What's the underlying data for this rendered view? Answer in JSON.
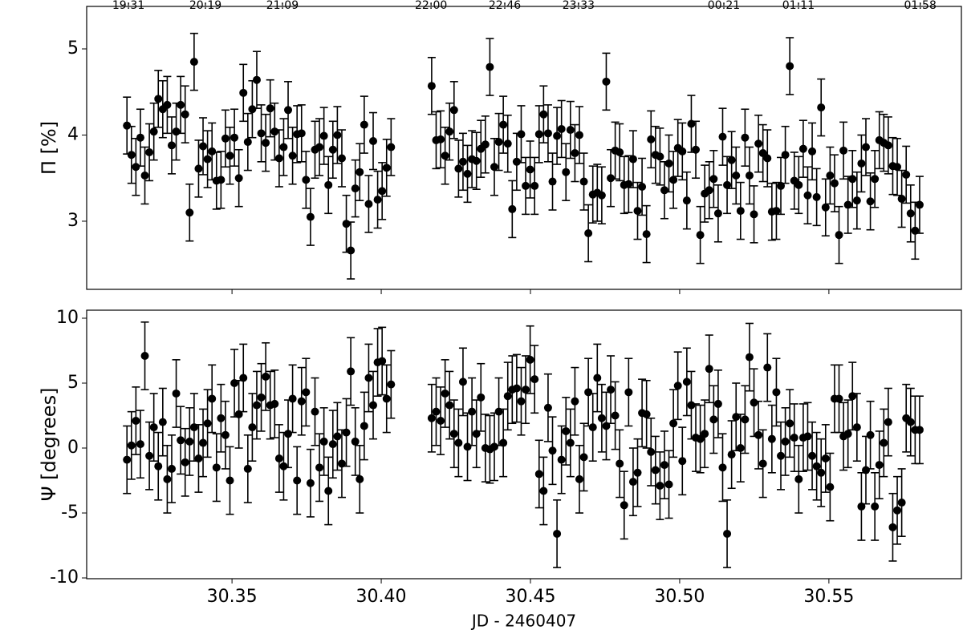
{
  "chart_data": {
    "type": "scatter",
    "xlabel": "JD - 2460407",
    "xlim": [
      30.3013,
      30.5944
    ],
    "xticks": [
      30.35,
      {
        "value": 30.4,
        "label": "30.40"
      },
      30.45,
      {
        "value": 30.5,
        "label": "30.50"
      },
      30.55
    ],
    "x2ticks": [
      {
        "value": 30.3153,
        "label": "19:31"
      },
      {
        "value": 30.3411,
        "label": "20:19"
      },
      {
        "value": 30.3669,
        "label": "21:09"
      },
      {
        "value": 30.4167,
        "label": "22:00"
      },
      {
        "value": 30.4414,
        "label": "22:46"
      },
      {
        "value": 30.4661,
        "label": "23:33"
      },
      {
        "value": 30.5148,
        "label": "00:21"
      },
      {
        "value": 30.5398,
        "label": "01:11"
      },
      {
        "value": 30.5806,
        "label": "01:58"
      }
    ],
    "color": "#000000",
    "x": [
      30.3148,
      30.3163,
      30.3178,
      30.3193,
      30.3208,
      30.3223,
      30.3238,
      30.3253,
      30.3268,
      30.3283,
      30.3298,
      30.3313,
      30.3328,
      30.3343,
      30.3358,
      30.3373,
      30.3388,
      30.3403,
      30.3418,
      30.3433,
      30.3448,
      30.3463,
      30.3478,
      30.3493,
      30.3508,
      30.3523,
      30.3538,
      30.3553,
      30.3568,
      30.3583,
      30.3598,
      30.3613,
      30.3628,
      30.3643,
      30.3658,
      30.3673,
      30.3688,
      30.3703,
      30.3718,
      30.3733,
      30.3748,
      30.3763,
      30.3778,
      30.3793,
      30.3808,
      30.3823,
      30.3838,
      30.3853,
      30.3868,
      30.3883,
      30.3898,
      30.3913,
      30.3928,
      30.3943,
      30.3958,
      30.3973,
      30.3988,
      30.4003,
      30.4018,
      30.4033,
      30.4169,
      30.4184,
      30.4199,
      30.4214,
      30.4229,
      30.4244,
      30.4259,
      30.4274,
      30.4289,
      30.4304,
      30.4319,
      30.4334,
      30.4349,
      30.4364,
      30.4379,
      30.4394,
      30.4409,
      30.4424,
      30.4439,
      30.4454,
      30.4469,
      30.4484,
      30.4499,
      30.4514,
      30.4529,
      30.4544,
      30.4559,
      30.4574,
      30.4589,
      30.4604,
      30.4619,
      30.4634,
      30.4649,
      30.4664,
      30.4679,
      30.4694,
      30.4709,
      30.4724,
      30.4739,
      30.4754,
      30.4769,
      30.4784,
      30.4799,
      30.4814,
      30.4829,
      30.4844,
      30.4859,
      30.4874,
      30.4889,
      30.4904,
      30.4919,
      30.4934,
      30.4949,
      30.4964,
      30.4979,
      30.4994,
      30.5009,
      30.5024,
      30.5039,
      30.5054,
      30.5069,
      30.5084,
      30.5099,
      30.5114,
      30.5129,
      30.5144,
      30.5159,
      30.5174,
      30.5189,
      30.5204,
      30.5219,
      30.5234,
      30.5249,
      30.5264,
      30.5279,
      30.5294,
      30.5309,
      30.5324,
      30.5339,
      30.5354,
      30.5369,
      30.5384,
      30.5399,
      30.5414,
      30.5429,
      30.5444,
      30.5459,
      30.5474,
      30.5489,
      30.5504,
      30.5519,
      30.5534,
      30.5549,
      30.5564,
      30.5579,
      30.5594,
      30.5609,
      30.5624,
      30.5639,
      30.5654,
      30.5669,
      30.5684,
      30.5699,
      30.5714,
      30.5729,
      30.5744,
      30.5759,
      30.5774,
      30.5789,
      30.5804
    ],
    "panels": [
      {
        "ylabel": "Π [%]",
        "ylim": [
          2.209,
          5.493
        ],
        "yticks": [
          3,
          4,
          5
        ],
        "error": 0.33,
        "values": [
          4.11,
          3.77,
          3.63,
          3.97,
          3.53,
          3.8,
          4.04,
          4.42,
          4.3,
          4.35,
          3.88,
          4.04,
          4.35,
          4.24,
          3.1,
          4.85,
          3.61,
          3.87,
          3.72,
          3.81,
          3.47,
          3.48,
          3.96,
          3.76,
          3.97,
          3.5,
          4.49,
          3.92,
          4.3,
          4.64,
          4.02,
          3.91,
          4.31,
          4.04,
          3.73,
          3.86,
          4.29,
          3.76,
          4.01,
          4.02,
          3.48,
          3.05,
          3.83,
          3.86,
          3.99,
          3.42,
          3.83,
          4.0,
          3.73,
          2.97,
          2.66,
          3.38,
          3.57,
          4.12,
          3.2,
          3.93,
          3.25,
          3.35,
          3.62,
          3.86,
          4.57,
          3.94,
          3.95,
          3.76,
          4.04,
          4.29,
          3.61,
          3.69,
          3.55,
          3.72,
          3.7,
          3.84,
          3.89,
          4.79,
          3.63,
          3.92,
          4.12,
          3.9,
          3.14,
          3.69,
          4.01,
          3.41,
          3.6,
          3.41,
          4.01,
          4.24,
          4.02,
          3.46,
          3.99,
          4.07,
          3.57,
          4.06,
          3.79,
          4.0,
          3.46,
          2.86,
          3.31,
          3.33,
          3.3,
          4.62,
          3.5,
          3.82,
          3.8,
          3.42,
          3.43,
          3.72,
          3.12,
          3.4,
          2.85,
          3.95,
          3.77,
          3.75,
          3.36,
          3.67,
          3.48,
          3.85,
          3.81,
          3.24,
          4.13,
          3.83,
          2.84,
          3.32,
          3.36,
          3.49,
          3.09,
          3.98,
          3.42,
          3.71,
          3.53,
          3.12,
          3.97,
          3.53,
          3.08,
          3.9,
          3.79,
          3.73,
          3.11,
          3.12,
          3.41,
          3.77,
          4.8,
          3.47,
          3.42,
          3.84,
          3.3,
          3.81,
          3.28,
          4.32,
          3.16,
          3.53,
          3.44,
          2.84,
          3.82,
          3.19,
          3.49,
          3.24,
          3.67,
          3.86,
          3.23,
          3.49,
          3.94,
          3.91,
          3.88,
          3.64,
          3.63,
          3.26,
          3.54,
          3.09,
          2.89,
          3.19
        ]
      },
      {
        "ylabel": "Ψ [degrees]",
        "ylim": [
          -10.06,
          10.617
        ],
        "yticks": [
          -10,
          -5,
          0,
          5,
          10
        ],
        "error": 2.6,
        "values": [
          -0.9,
          0.2,
          2.1,
          0.3,
          7.1,
          -0.6,
          1.6,
          -1.4,
          2.0,
          -2.4,
          -1.6,
          4.2,
          0.6,
          -1.1,
          0.5,
          1.6,
          -0.8,
          0.4,
          1.9,
          3.8,
          -1.5,
          2.3,
          1.0,
          -2.5,
          5.0,
          2.6,
          5.4,
          -1.6,
          1.6,
          3.3,
          3.9,
          5.5,
          3.3,
          3.4,
          -0.8,
          -1.4,
          1.1,
          3.8,
          -2.5,
          3.6,
          4.3,
          -2.7,
          2.8,
          -1.5,
          0.5,
          -3.3,
          0.3,
          0.9,
          -1.2,
          1.2,
          5.9,
          0.5,
          -2.4,
          1.7,
          5.4,
          3.3,
          6.6,
          6.7,
          3.8,
          4.9,
          2.3,
          2.8,
          2.1,
          4.2,
          3.3,
          1.1,
          0.4,
          5.1,
          0.1,
          2.8,
          1.1,
          3.9,
          0.0,
          -0.1,
          0.1,
          2.8,
          0.4,
          4.0,
          4.5,
          4.6,
          3.6,
          4.5,
          6.8,
          5.3,
          -2.0,
          -3.3,
          3.1,
          -0.2,
          -6.6,
          -0.9,
          1.3,
          0.4,
          3.6,
          -2.4,
          -0.7,
          4.3,
          1.6,
          5.4,
          2.3,
          1.7,
          4.5,
          2.5,
          -1.2,
          -4.4,
          4.3,
          -2.6,
          -1.9,
          2.7,
          2.6,
          -0.3,
          -1.7,
          -2.9,
          -1.3,
          -2.8,
          1.9,
          4.8,
          -1.0,
          5.1,
          3.3,
          0.8,
          0.7,
          1.1,
          6.1,
          2.2,
          3.4,
          -1.5,
          -6.6,
          -0.5,
          2.4,
          0.0,
          2.2,
          7.0,
          3.5,
          1.0,
          -1.2,
          6.2,
          0.7,
          4.3,
          -0.6,
          0.5,
          1.9,
          0.8,
          -2.4,
          0.8,
          0.9,
          -0.6,
          -1.4,
          -1.9,
          -0.8,
          -3.0,
          3.8,
          3.8,
          0.9,
          1.1,
          4.0,
          1.6,
          -4.5,
          -1.7,
          1.0,
          -4.5,
          -1.3,
          0.4,
          2.0,
          -6.1,
          -4.8,
          -4.2,
          2.3,
          2.0,
          1.4,
          1.4
        ]
      }
    ]
  }
}
